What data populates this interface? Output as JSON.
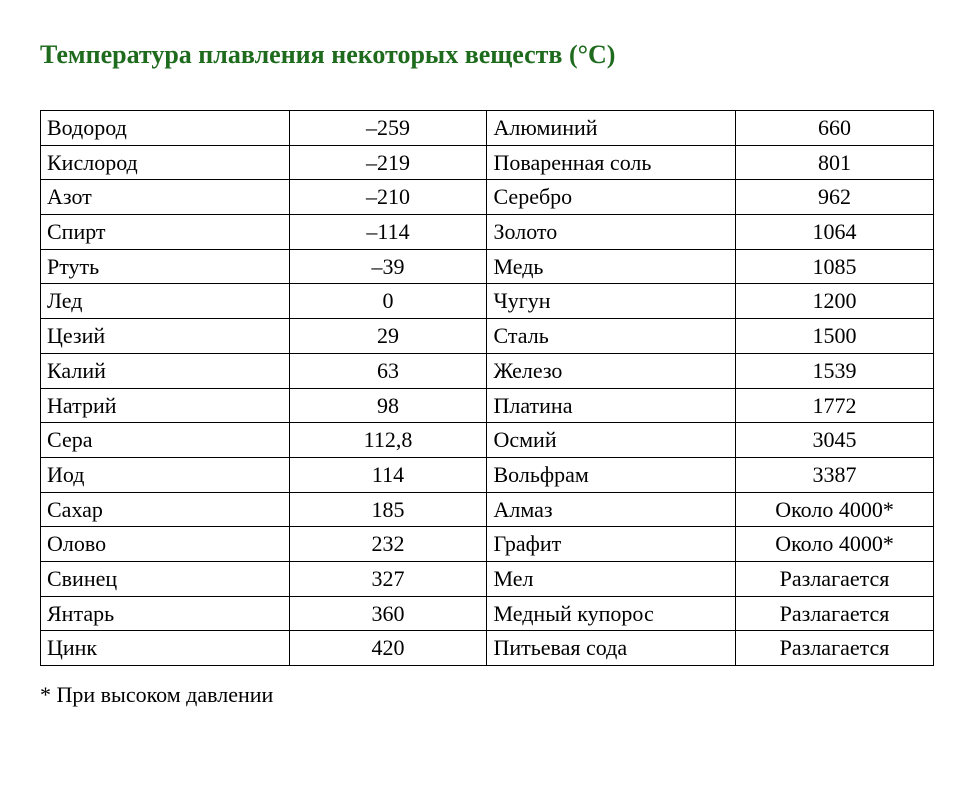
{
  "title": "Температура плавления некоторых веществ (°С)",
  "footnote": "* При высоком давлении",
  "table": {
    "type": "table",
    "columns": [
      "substance_left",
      "value_left",
      "substance_right",
      "value_right"
    ],
    "column_align": [
      "left",
      "center",
      "left",
      "center"
    ],
    "border_color": "#000000",
    "font_family": "Times New Roman",
    "font_size_pt": 16,
    "rows": [
      {
        "l_name": "Водород",
        "l_val": "–259",
        "r_name": "Алюминий",
        "r_val": "660"
      },
      {
        "l_name": "Кислород",
        "l_val": "–219",
        "r_name": "Поваренная соль",
        "r_val": "801"
      },
      {
        "l_name": "Азот",
        "l_val": "–210",
        "r_name": "Серебро",
        "r_val": "962"
      },
      {
        "l_name": "Спирт",
        "l_val": "–114",
        "r_name": "Золото",
        "r_val": "1064"
      },
      {
        "l_name": "Ртуть",
        "l_val": "–39",
        "r_name": "Медь",
        "r_val": "1085"
      },
      {
        "l_name": "Лед",
        "l_val": "0",
        "r_name": "Чугун",
        "r_val": "1200"
      },
      {
        "l_name": "Цезий",
        "l_val": "29",
        "r_name": "Сталь",
        "r_val": "1500"
      },
      {
        "l_name": "Калий",
        "l_val": "63",
        "r_name": "Железо",
        "r_val": "1539"
      },
      {
        "l_name": "Натрий",
        "l_val": "98",
        "r_name": "Платина",
        "r_val": "1772"
      },
      {
        "l_name": "Сера",
        "l_val": "112,8",
        "r_name": "Осмий",
        "r_val": "3045"
      },
      {
        "l_name": "Иод",
        "l_val": "114",
        "r_name": "Вольфрам",
        "r_val": "3387"
      },
      {
        "l_name": "Сахар",
        "l_val": "185",
        "r_name": "Алмаз",
        "r_val": "Около 4000*"
      },
      {
        "l_name": "Олово",
        "l_val": "232",
        "r_name": "Графит",
        "r_val": "Около 4000*"
      },
      {
        "l_name": "Свинец",
        "l_val": "327",
        "r_name": "Мел",
        "r_val": "Разлагается"
      },
      {
        "l_name": "Янтарь",
        "l_val": "360",
        "r_name": "Медный купорос",
        "r_val": "Разлагается"
      },
      {
        "l_name": "Цинк",
        "l_val": "420",
        "r_name": "Питьевая сода",
        "r_val": "Разлагается"
      }
    ]
  },
  "colors": {
    "title": "#1e6b1e",
    "text": "#000000",
    "background": "#ffffff",
    "border": "#000000"
  }
}
